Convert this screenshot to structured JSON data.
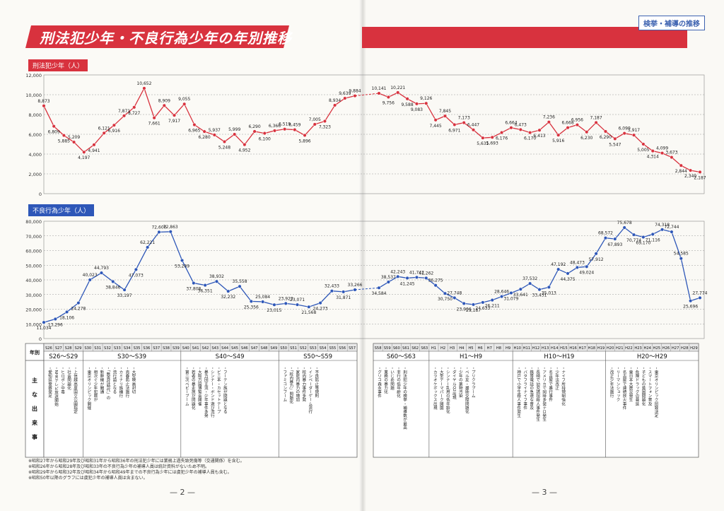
{
  "title": "刑法犯少年・不良行為少年の年別推移",
  "corner_tag": "検挙・補導の推移",
  "page_numbers": [
    "— 2 —",
    "— 3 —"
  ],
  "chart_data": [
    {
      "type": "line",
      "title": "刑法犯少年（人）",
      "ylim": [
        0,
        12000
      ],
      "yticks": [
        "0",
        "2,000",
        "4,000",
        "6,000",
        "8,000",
        "10,000",
        "12,000"
      ],
      "grid": true,
      "color": "#d8323e",
      "series": [
        {
          "segment": 1,
          "values": [
            8873,
            6809,
            5885,
            5209,
            4197,
            4941,
            6121,
            6916,
            7871,
            8727,
            10652,
            7661,
            8909,
            7917,
            9055,
            6965,
            6280,
            5937,
            5248,
            5999,
            4952,
            6290,
            6100,
            6366,
            6519,
            6459,
            5896,
            7005,
            7323,
            8934,
            9639,
            9884
          ]
        },
        {
          "segment": 2,
          "values": [
            10141,
            9756,
            10221,
            9588,
            9083,
            9126,
            7445,
            7845,
            6971,
            7173,
            6447,
            5631,
            5693,
            6176,
            6664,
            6473,
            6170,
            6413,
            7236,
            5916,
            6668,
            6956,
            6230,
            7187,
            6290,
            5547,
            6099,
            5917,
            5005,
            4314,
            4099,
            3673,
            2844,
            2349,
            2187
          ]
        }
      ]
    },
    {
      "type": "line",
      "title": "不良行為少年（人）",
      "ylim": [
        0,
        80000
      ],
      "yticks": [
        "0",
        "10,000",
        "20,000",
        "30,000",
        "40,000",
        "50,000",
        "60,000",
        "70,000",
        "80,000"
      ],
      "grid": true,
      "color": "#2e57b8",
      "series": [
        {
          "segment": 1,
          "values": [
            11034,
            13296,
            18106,
            24278,
            40023,
            44793,
            38846,
            33197,
            47073,
            62221,
            72600,
            72863,
            53289,
            37808,
            36351,
            38932,
            32232,
            35558,
            25356,
            25084,
            23015,
            23923,
            23071,
            21568,
            24273,
            32433,
            31871,
            33266
          ]
        },
        {
          "segment": 2,
          "values": [
            34584,
            38537,
            42243,
            41245,
            41742,
            41262,
            36275,
            30750,
            27748,
            23906,
            23187,
            24633,
            26211,
            28646,
            31079,
            33641,
            37532,
            33431,
            35013,
            47192,
            44375,
            48473,
            49024,
            57912,
            68572,
            67893,
            75678,
            70774,
            69170,
            71116,
            74318,
            72744,
            54585,
            25696,
            27774
          ]
        }
      ]
    }
  ],
  "timeline": {
    "row_label": "年別",
    "events_label": "主な出来事",
    "left_years": [
      "S26",
      "S27",
      "S28",
      "S29",
      "S30",
      "S31",
      "S32",
      "S33",
      "S34",
      "S35",
      "S36",
      "S37",
      "S38",
      "S39",
      "S40",
      "S41",
      "S42",
      "S43",
      "S44",
      "S45",
      "S46",
      "S47",
      "S48",
      "S49",
      "S50",
      "S51",
      "S52",
      "S53",
      "S54",
      "S55",
      "S56",
      "S57"
    ],
    "right_years": [
      "S58",
      "S59",
      "S60",
      "S61",
      "S62",
      "S63",
      "H1",
      "H2",
      "H3",
      "H4",
      "H5",
      "H6",
      "H7",
      "H8",
      "H9",
      "H10",
      "H11",
      "H12",
      "H13",
      "H14",
      "H15",
      "H16",
      "H17",
      "H18",
      "H19",
      "H20",
      "H21",
      "H22",
      "H23",
      "H24",
      "H25",
      "H26",
      "H27",
      "H28",
      "H29"
    ],
    "periods": [
      "S26～S29",
      "S30～S39",
      "S40～S49",
      "S50～S59",
      "S60～S63",
      "H1～H9",
      "H10～H19",
      "H20～H29"
    ],
    "events": [
      [
        "愛知県警察発足",
        "NHKテレビ放送開始",
        "ヒロポン中毒",
        "社会問題化",
        "上信越高原国立公園指定"
      ],
      [
        "東京オリンピック開催",
        "相次ぐ少年犯罪が",
        "新幹線が開通",
        "「無責任時代」の",
        "流行語となる",
        "カミナリ族横行",
        "売春防止法施行",
        "大型映画封切"
      ],
      [
        "第二次ベビーブーム",
        "若者の暴走族が問題化",
        "大阪万国博覧会開催",
        "暴力団主流・少年事件多発",
        "シンナー・ボンド遊び流行",
        "ビニ本・カセットテープ",
        "フーテン族が問題となる"
      ],
      [
        "ファミコンブーム",
        "「校内暴力」問題化",
        "家庭内暴力の増加",
        "校内暴力事件多発",
        "インベーダーゲーム流行",
        "不良防止等規則"
      ],
      [
        "グリコ森永事件",
        "業務の暴力化",
        "いじめ問題",
        "非行の低年齢化",
        "刑法犯少年の検挙・補導数が最高"
      ],
      [
        "カラオケボックス出現",
        "大型テーマパーク開園",
        "シンナー乱用の低年齢化",
        "ダイヤルQ2出現",
        "少年の薬物汚染",
        "ベル友・援助交際問題化",
        "プリクラブーム"
      ],
      [
        "神戸で小学生殺人事件発生",
        "バタフライナイフ事件",
        "携帯電話の急速な普及",
        "長崎で幼児誘拐殺人事件発生",
        "アメリカで同時多発テロ発生",
        "名古屋で暴行事件",
        "少年法改正",
        "ナイフ所持規制強化"
      ],
      [
        "改正少年法施行",
        "リーマンショック",
        "名古屋で連続放火事件",
        "東日本大震災発生",
        "危険ドラッグの蔓延",
        "子どもの貧困問題化",
        "スマートフォン普及",
        "東京オリンピック招致決定"
      ]
    ]
  },
  "footnotes": [
    "※昭和27年から昭和29年及び昭和31年から昭和36年の刑法犯少年には業務上過失致死傷等（交通関係）を含む。",
    "※昭和26年から昭和28年及び昭和33年の不良行為少年の補導人員は統計資料がないため不明。",
    "※昭和29年から昭和32年及び昭和34年から昭和49年までの不良行為少年には虞犯少年の補導人員も含む。",
    "※昭和50年以降のグラフには虞犯少年の補導人員は含まない。"
  ]
}
